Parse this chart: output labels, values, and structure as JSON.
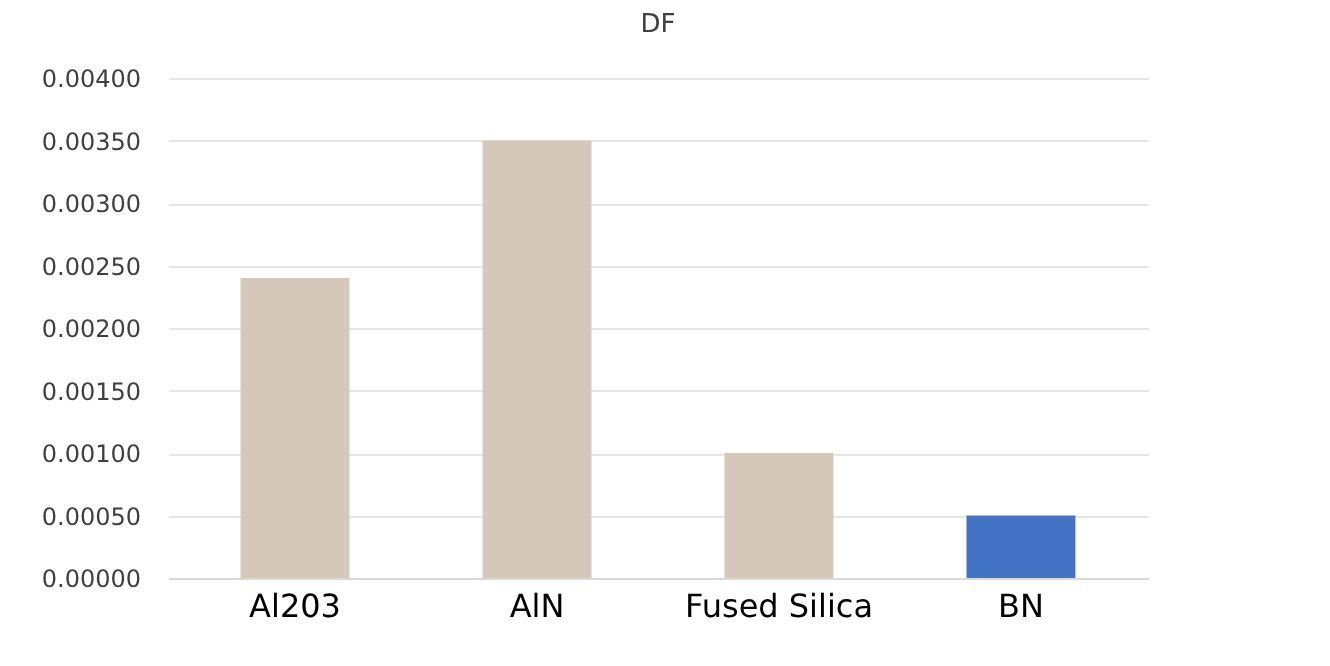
{
  "chart_data": {
    "type": "bar",
    "title": "DF",
    "categories": [
      "Al203",
      "AlN",
      "Fused Silica",
      "BN"
    ],
    "values": [
      0.0024,
      0.0035,
      0.001,
      0.0005
    ],
    "colors": [
      "#d5c7ba",
      "#d5c7ba",
      "#d5c7ba",
      "#4472c4"
    ],
    "ylim": [
      0,
      0.004
    ],
    "yticks": [
      {
        "value": 0,
        "label": "0.00000"
      },
      {
        "value": 0.0005,
        "label": "0.00050"
      },
      {
        "value": 0.001,
        "label": "0.00100"
      },
      {
        "value": 0.0015,
        "label": "0.00150"
      },
      {
        "value": 0.002,
        "label": "0.00200"
      },
      {
        "value": 0.0025,
        "label": "0.00250"
      },
      {
        "value": 0.003,
        "label": "0.00300"
      },
      {
        "value": 0.0035,
        "label": "0.00350"
      },
      {
        "value": 0.004,
        "label": "0.00400"
      }
    ],
    "grid": true
  }
}
